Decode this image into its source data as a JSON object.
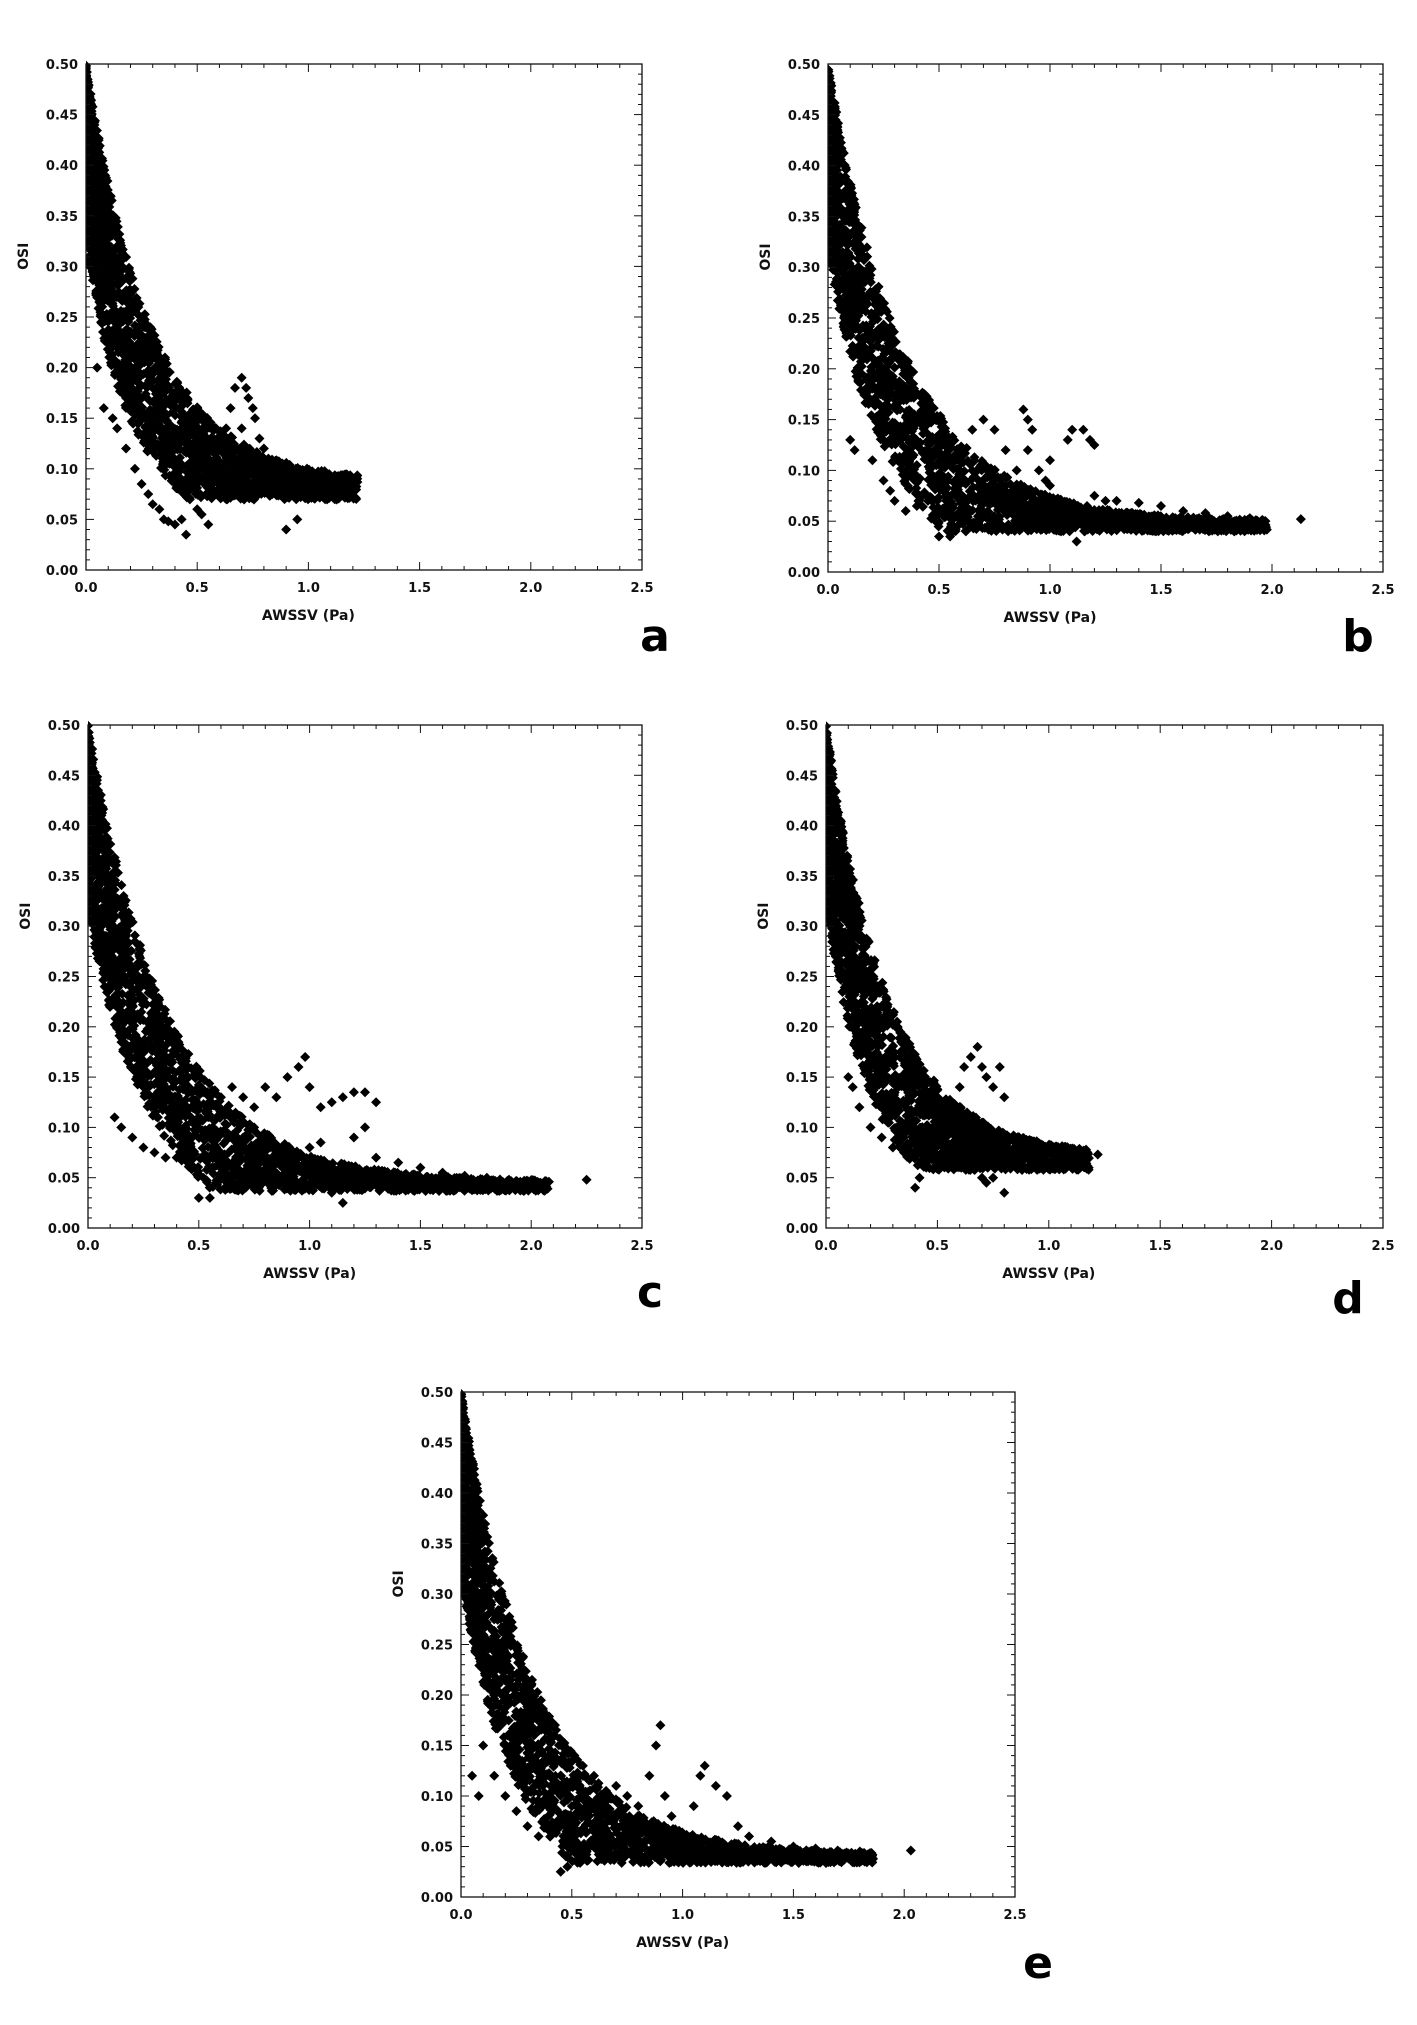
{
  "colors": {
    "marker": "#000000",
    "axis": "#111111",
    "background": "#ffffff"
  },
  "chart_data": [
    {
      "panel": "a",
      "type": "scatter",
      "marker": "diamond",
      "xlabel": "AWSSV (Pa)",
      "ylabel": "OSI",
      "xlim": [
        0,
        2.5
      ],
      "ylim": [
        0,
        0.5
      ],
      "xticks": [
        "0.0",
        "0.5",
        "1.0",
        "1.5",
        "2.0",
        "2.5"
      ],
      "yticks": [
        "0.00",
        "0.05",
        "0.10",
        "0.15",
        "0.20",
        "0.25",
        "0.30",
        "0.35",
        "0.40",
        "0.45",
        "0.50"
      ],
      "grid": false,
      "band": {
        "x_end": 1.22,
        "y_end": 0.087,
        "decay": 3.4,
        "spread": 0.09,
        "count": 2200
      },
      "points": [
        [
          0.35,
          0.05
        ],
        [
          0.37,
          0.048
        ],
        [
          0.4,
          0.045
        ],
        [
          0.45,
          0.035
        ],
        [
          0.43,
          0.05
        ],
        [
          0.5,
          0.06
        ],
        [
          0.55,
          0.045
        ],
        [
          0.52,
          0.055
        ],
        [
          0.5,
          0.075
        ],
        [
          0.58,
          0.09
        ],
        [
          0.6,
          0.12
        ],
        [
          0.62,
          0.13
        ],
        [
          0.63,
          0.14
        ],
        [
          0.65,
          0.16
        ],
        [
          0.67,
          0.18
        ],
        [
          0.7,
          0.19
        ],
        [
          0.72,
          0.18
        ],
        [
          0.73,
          0.17
        ],
        [
          0.75,
          0.16
        ],
        [
          0.76,
          0.15
        ],
        [
          0.78,
          0.13
        ],
        [
          0.8,
          0.12
        ],
        [
          0.82,
          0.11
        ],
        [
          0.78,
          0.1
        ],
        [
          0.81,
          0.095
        ],
        [
          0.83,
          0.09
        ],
        [
          0.8,
          0.08
        ],
        [
          0.77,
          0.075
        ],
        [
          0.9,
          0.04
        ],
        [
          0.95,
          0.05
        ],
        [
          0.85,
          0.1
        ],
        [
          0.88,
          0.1
        ],
        [
          0.92,
          0.095
        ],
        [
          0.95,
          0.095
        ],
        [
          1.0,
          0.092
        ],
        [
          1.05,
          0.09
        ],
        [
          1.1,
          0.09
        ],
        [
          1.15,
          0.088
        ],
        [
          1.2,
          0.087
        ],
        [
          1.22,
          0.087
        ],
        [
          0.12,
          0.15
        ],
        [
          0.14,
          0.14
        ],
        [
          0.18,
          0.12
        ],
        [
          0.22,
          0.1
        ],
        [
          0.25,
          0.085
        ],
        [
          0.28,
          0.075
        ],
        [
          0.3,
          0.065
        ],
        [
          0.33,
          0.06
        ],
        [
          0.05,
          0.2
        ],
        [
          0.08,
          0.16
        ],
        [
          0.15,
          0.2
        ],
        [
          0.18,
          0.17
        ],
        [
          0.6,
          0.1
        ],
        [
          0.68,
          0.12
        ],
        [
          0.7,
          0.14
        ],
        [
          0.71,
          0.1
        ],
        [
          0.65,
          0.085
        ],
        [
          0.74,
          0.095
        ]
      ]
    },
    {
      "panel": "b",
      "type": "scatter",
      "marker": "diamond",
      "xlabel": "AWSSV (Pa)",
      "ylabel": "OSI",
      "xlim": [
        0,
        2.5
      ],
      "ylim": [
        0,
        0.5
      ],
      "xticks": [
        "0.0",
        "0.5",
        "1.0",
        "1.5",
        "2.0",
        "2.5"
      ],
      "yticks": [
        "0.00",
        "0.05",
        "0.10",
        "0.15",
        "0.20",
        "0.25",
        "0.30",
        "0.35",
        "0.40",
        "0.45",
        "0.50"
      ],
      "grid": false,
      "band": {
        "x_end": 1.98,
        "y_end": 0.05,
        "decay": 2.9,
        "spread": 0.1,
        "count": 2400
      },
      "points": [
        [
          0.1,
          0.13
        ],
        [
          0.12,
          0.12
        ],
        [
          0.2,
          0.11
        ],
        [
          0.25,
          0.09
        ],
        [
          0.28,
          0.08
        ],
        [
          0.3,
          0.07
        ],
        [
          0.35,
          0.06
        ],
        [
          0.4,
          0.065
        ],
        [
          0.45,
          0.07
        ],
        [
          0.5,
          0.035
        ],
        [
          0.55,
          0.035
        ],
        [
          0.6,
          0.12
        ],
        [
          0.65,
          0.14
        ],
        [
          0.7,
          0.15
        ],
        [
          0.75,
          0.14
        ],
        [
          0.8,
          0.12
        ],
        [
          0.85,
          0.1
        ],
        [
          0.9,
          0.15
        ],
        [
          0.88,
          0.16
        ],
        [
          0.92,
          0.14
        ],
        [
          0.95,
          0.1
        ],
        [
          0.98,
          0.09
        ],
        [
          1.0,
          0.085
        ],
        [
          1.02,
          0.07
        ],
        [
          1.05,
          0.06
        ],
        [
          1.08,
          0.13
        ],
        [
          1.1,
          0.14
        ],
        [
          1.15,
          0.14
        ],
        [
          1.18,
          0.13
        ],
        [
          1.2,
          0.125
        ],
        [
          1.12,
          0.03
        ],
        [
          1.1,
          0.06
        ],
        [
          1.2,
          0.075
        ],
        [
          1.25,
          0.07
        ],
        [
          1.3,
          0.07
        ],
        [
          1.4,
          0.068
        ],
        [
          1.5,
          0.065
        ],
        [
          1.6,
          0.06
        ],
        [
          1.7,
          0.058
        ],
        [
          1.8,
          0.055
        ],
        [
          1.9,
          0.053
        ],
        [
          1.95,
          0.05
        ],
        [
          2.13,
          0.052
        ],
        [
          0.95,
          0.05
        ],
        [
          0.98,
          0.045
        ],
        [
          1.05,
          0.04
        ],
        [
          0.7,
          0.08
        ],
        [
          0.75,
          0.09
        ],
        [
          0.8,
          0.085
        ],
        [
          0.65,
          0.1
        ],
        [
          1.0,
          0.11
        ],
        [
          0.9,
          0.12
        ]
      ]
    },
    {
      "panel": "c",
      "type": "scatter",
      "marker": "diamond",
      "xlabel": "AWSSV (Pa)",
      "ylabel": "OSI",
      "xlim": [
        0,
        2.5
      ],
      "ylim": [
        0,
        0.5
      ],
      "xticks": [
        "0.0",
        "0.5",
        "1.0",
        "1.5",
        "2.0",
        "2.5"
      ],
      "yticks": [
        "0.00",
        "0.05",
        "0.10",
        "0.15",
        "0.20",
        "0.25",
        "0.30",
        "0.35",
        "0.40",
        "0.45",
        "0.50"
      ],
      "grid": false,
      "band": {
        "x_end": 2.08,
        "y_end": 0.046,
        "decay": 2.8,
        "spread": 0.1,
        "count": 2400
      },
      "points": [
        [
          0.12,
          0.11
        ],
        [
          0.15,
          0.1
        ],
        [
          0.2,
          0.09
        ],
        [
          0.25,
          0.08
        ],
        [
          0.3,
          0.075
        ],
        [
          0.35,
          0.07
        ],
        [
          0.4,
          0.07
        ],
        [
          0.45,
          0.065
        ],
        [
          0.5,
          0.03
        ],
        [
          0.55,
          0.03
        ],
        [
          0.55,
          0.12
        ],
        [
          0.6,
          0.13
        ],
        [
          0.65,
          0.14
        ],
        [
          0.7,
          0.13
        ],
        [
          0.75,
          0.12
        ],
        [
          0.8,
          0.14
        ],
        [
          0.85,
          0.13
        ],
        [
          0.9,
          0.15
        ],
        [
          0.95,
          0.16
        ],
        [
          0.98,
          0.17
        ],
        [
          1.0,
          0.14
        ],
        [
          1.05,
          0.12
        ],
        [
          1.1,
          0.125
        ],
        [
          1.15,
          0.13
        ],
        [
          1.2,
          0.135
        ],
        [
          1.25,
          0.135
        ],
        [
          1.3,
          0.125
        ],
        [
          1.25,
          0.1
        ],
        [
          1.2,
          0.09
        ],
        [
          1.1,
          0.035
        ],
        [
          1.15,
          0.025
        ],
        [
          1.2,
          0.04
        ],
        [
          1.3,
          0.07
        ],
        [
          1.4,
          0.065
        ],
        [
          1.5,
          0.06
        ],
        [
          1.6,
          0.055
        ],
        [
          1.7,
          0.052
        ],
        [
          1.8,
          0.05
        ],
        [
          1.9,
          0.048
        ],
        [
          2.0,
          0.047
        ],
        [
          2.08,
          0.046
        ],
        [
          2.25,
          0.048
        ],
        [
          0.8,
          0.08
        ],
        [
          0.85,
          0.075
        ],
        [
          0.9,
          0.07
        ],
        [
          0.95,
          0.07
        ],
        [
          1.0,
          0.08
        ],
        [
          1.05,
          0.085
        ],
        [
          0.7,
          0.09
        ],
        [
          0.75,
          0.1
        ]
      ]
    },
    {
      "panel": "d",
      "type": "scatter",
      "marker": "diamond",
      "xlabel": "AWSSV (Pa)",
      "ylabel": "OSI",
      "xlim": [
        0,
        2.5
      ],
      "ylim": [
        0,
        0.5
      ],
      "xticks": [
        "0.0",
        "0.5",
        "1.0",
        "1.5",
        "2.0",
        "2.5"
      ],
      "yticks": [
        "0.00",
        "0.05",
        "0.10",
        "0.15",
        "0.20",
        "0.25",
        "0.30",
        "0.35",
        "0.40",
        "0.45",
        "0.50"
      ],
      "grid": false,
      "band": {
        "x_end": 1.18,
        "y_end": 0.072,
        "decay": 3.6,
        "spread": 0.09,
        "count": 2200
      },
      "points": [
        [
          0.1,
          0.15
        ],
        [
          0.12,
          0.14
        ],
        [
          0.15,
          0.12
        ],
        [
          0.2,
          0.1
        ],
        [
          0.25,
          0.09
        ],
        [
          0.3,
          0.08
        ],
        [
          0.35,
          0.075
        ],
        [
          0.4,
          0.04
        ],
        [
          0.42,
          0.05
        ],
        [
          0.45,
          0.06
        ],
        [
          0.5,
          0.07
        ],
        [
          0.55,
          0.1
        ],
        [
          0.6,
          0.14
        ],
        [
          0.62,
          0.16
        ],
        [
          0.65,
          0.17
        ],
        [
          0.68,
          0.18
        ],
        [
          0.7,
          0.16
        ],
        [
          0.72,
          0.15
        ],
        [
          0.75,
          0.14
        ],
        [
          0.78,
          0.16
        ],
        [
          0.8,
          0.13
        ],
        [
          0.7,
          0.05
        ],
        [
          0.72,
          0.045
        ],
        [
          0.75,
          0.05
        ],
        [
          0.8,
          0.035
        ],
        [
          0.85,
          0.09
        ],
        [
          0.9,
          0.085
        ],
        [
          0.95,
          0.08
        ],
        [
          1.0,
          0.078
        ],
        [
          1.05,
          0.075
        ],
        [
          1.1,
          0.074
        ],
        [
          1.15,
          0.072
        ],
        [
          1.22,
          0.073
        ],
        [
          0.6,
          0.09
        ],
        [
          0.65,
          0.085
        ],
        [
          0.58,
          0.11
        ],
        [
          0.5,
          0.09
        ],
        [
          0.48,
          0.12
        ]
      ]
    },
    {
      "panel": "e",
      "type": "scatter",
      "marker": "diamond",
      "xlabel": "AWSSV (Pa)",
      "ylabel": "OSI",
      "xlim": [
        0,
        2.5
      ],
      "ylim": [
        0,
        0.5
      ],
      "xticks": [
        "0.0",
        "0.5",
        "1.0",
        "1.5",
        "2.0",
        "2.5"
      ],
      "yticks": [
        "0.00",
        "0.05",
        "0.10",
        "0.15",
        "0.20",
        "0.25",
        "0.30",
        "0.35",
        "0.40",
        "0.45",
        "0.50"
      ],
      "grid": false,
      "band": {
        "x_end": 1.86,
        "y_end": 0.042,
        "decay": 3.0,
        "spread": 0.1,
        "count": 2400
      },
      "points": [
        [
          0.05,
          0.12
        ],
        [
          0.08,
          0.1
        ],
        [
          0.1,
          0.15
        ],
        [
          0.15,
          0.12
        ],
        [
          0.2,
          0.1
        ],
        [
          0.25,
          0.085
        ],
        [
          0.3,
          0.07
        ],
        [
          0.35,
          0.06
        ],
        [
          0.4,
          0.065
        ],
        [
          0.45,
          0.025
        ],
        [
          0.48,
          0.03
        ],
        [
          0.5,
          0.09
        ],
        [
          0.55,
          0.13
        ],
        [
          0.6,
          0.12
        ],
        [
          0.65,
          0.1
        ],
        [
          0.7,
          0.11
        ],
        [
          0.75,
          0.1
        ],
        [
          0.8,
          0.09
        ],
        [
          0.85,
          0.12
        ],
        [
          0.88,
          0.15
        ],
        [
          0.9,
          0.17
        ],
        [
          0.92,
          0.1
        ],
        [
          0.95,
          0.08
        ],
        [
          1.0,
          0.06
        ],
        [
          1.05,
          0.09
        ],
        [
          1.08,
          0.12
        ],
        [
          1.1,
          0.13
        ],
        [
          1.15,
          0.11
        ],
        [
          1.2,
          0.1
        ],
        [
          1.25,
          0.07
        ],
        [
          1.3,
          0.06
        ],
        [
          1.4,
          0.055
        ],
        [
          1.5,
          0.05
        ],
        [
          1.6,
          0.048
        ],
        [
          1.7,
          0.046
        ],
        [
          1.8,
          0.045
        ],
        [
          1.85,
          0.043
        ],
        [
          2.03,
          0.046
        ],
        [
          1.0,
          0.035
        ],
        [
          0.95,
          0.04
        ],
        [
          0.7,
          0.07
        ],
        [
          0.75,
          0.075
        ],
        [
          0.8,
          0.065
        ]
      ]
    }
  ]
}
